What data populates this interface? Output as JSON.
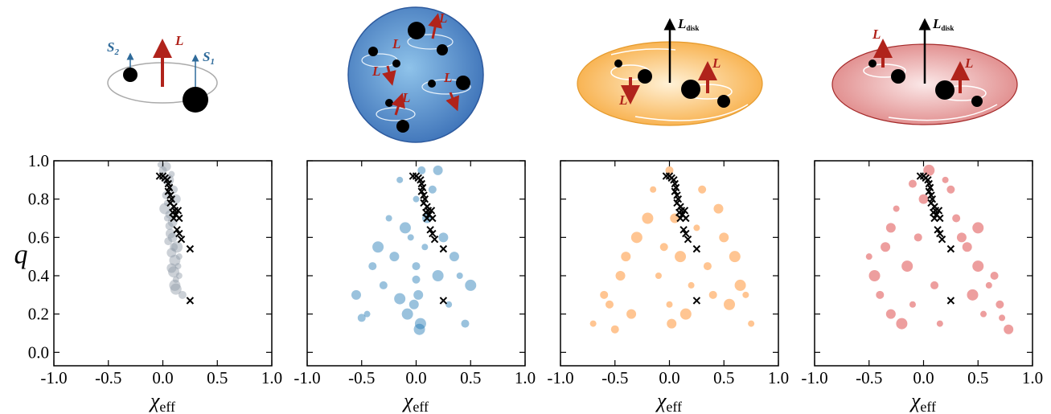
{
  "illustrations": [
    {
      "labels": [
        {
          "symbol": "S",
          "subscript": "2"
        },
        {
          "symbol": "L"
        },
        {
          "symbol": "S",
          "subscript": "1"
        }
      ]
    },
    {
      "labels": [
        {
          "symbol": "L"
        },
        {
          "symbol": "L"
        },
        {
          "symbol": "L"
        },
        {
          "symbol": "L"
        },
        {
          "symbol": "L"
        }
      ]
    },
    {
      "labels": [
        {
          "symbol": "L",
          "subscript": "disk"
        },
        {
          "symbol": "L"
        },
        {
          "symbol": "L"
        }
      ]
    },
    {
      "labels": [
        {
          "symbol": "L"
        },
        {
          "symbol": "L",
          "subscript": "disk"
        },
        {
          "symbol": "L"
        }
      ]
    }
  ],
  "chart_data": [
    {
      "type": "scatter",
      "ylabel": "q",
      "xlabel": {
        "symbol": "χ",
        "subscript": "eff"
      },
      "xlim": [
        -1,
        1
      ],
      "ylim": [
        -0.07,
        1.0
      ],
      "show_yticklabels": true,
      "xticks": [
        {
          "value": -1,
          "label": "-1.0"
        },
        {
          "value": -0.5,
          "label": "-0.5"
        },
        {
          "value": 0,
          "label": "0.0"
        },
        {
          "value": 0.5,
          "label": "0.5"
        },
        {
          "value": 1,
          "label": "1.0"
        }
      ],
      "yticks": [
        {
          "value": 0,
          "label": "0.0"
        },
        {
          "value": 0.2,
          "label": "0.2"
        },
        {
          "value": 0.4,
          "label": "0.4"
        },
        {
          "value": 0.6,
          "label": "0.6"
        },
        {
          "value": 0.8,
          "label": "0.8"
        },
        {
          "value": 1,
          "label": "1.0"
        }
      ],
      "series": [
        {
          "color": "#8e9aa6",
          "marker": "circle",
          "x": [
            -0.02,
            0,
            0.03,
            0.05,
            0.08,
            0.1,
            0.12,
            0.02,
            0.04,
            0.06,
            0.09,
            0.13,
            0.15,
            0.03,
            0.07,
            0.11,
            0.14,
            0.05,
            0.08,
            0.1,
            0.12,
            0.06,
            0.09,
            0.11,
            0.15,
            0.18,
            0.08,
            0.12,
            0.04,
            0.1
          ],
          "values": [
            0.98,
            0.95,
            0.97,
            0.9,
            0.93,
            0.85,
            0.8,
            0.75,
            0.7,
            0.66,
            0.6,
            0.55,
            0.5,
            0.82,
            0.62,
            0.48,
            0.45,
            0.58,
            0.52,
            0.42,
            0.38,
            0.72,
            0.68,
            0.35,
            0.4,
            0.3,
            0.44,
            0.33,
            0.78,
            0.55
          ]
        },
        {
          "color": "#000000",
          "marker": "x",
          "x": [
            0.0,
            0.02,
            0.04,
            0.05,
            0.06,
            0.05,
            0.07,
            0.08,
            0.07,
            0.1,
            0.11,
            0.12,
            0.1,
            0.14,
            0.15,
            0.13,
            0.15,
            0.17,
            0.25,
            0.25,
            -0.03,
            0.09
          ],
          "values": [
            0.92,
            0.91,
            0.9,
            0.88,
            0.86,
            0.84,
            0.82,
            0.8,
            0.78,
            0.76,
            0.74,
            0.72,
            0.7,
            0.74,
            0.7,
            0.64,
            0.62,
            0.59,
            0.54,
            0.27,
            0.92,
            0.73
          ]
        }
      ]
    },
    {
      "type": "scatter",
      "xlabel": {
        "symbol": "χ",
        "subscript": "eff"
      },
      "xlim": [
        -1,
        1
      ],
      "ylim": [
        -0.07,
        1.0
      ],
      "show_yticklabels": false,
      "xticks": [
        {
          "value": -1,
          "label": "-1.0"
        },
        {
          "value": -0.5,
          "label": "-0.5"
        },
        {
          "value": 0,
          "label": "0.0"
        },
        {
          "value": 0.5,
          "label": "0.5"
        },
        {
          "value": 1,
          "label": "1.0"
        }
      ],
      "yticks": [
        0,
        0.2,
        0.4,
        0.6,
        0.8,
        1
      ],
      "series": [
        {
          "color": "#1f77b4",
          "marker": "circle",
          "x": [
            -0.45,
            -0.3,
            -0.2,
            -0.1,
            0.0,
            0.05,
            0.1,
            0.2,
            0.3,
            0.45,
            -0.55,
            -0.35,
            -0.15,
            0.0,
            0.02,
            0.04,
            -0.05,
            0.15,
            0.35,
            0.5,
            -0.25,
            -0.4,
            0.25,
            -0.08,
            0.08,
            0.0,
            -0.02,
            0.03,
            0.4,
            -0.5,
            0.2,
            -0.15
          ],
          "values": [
            0.2,
            0.35,
            0.5,
            0.65,
            0.8,
            0.95,
            0.7,
            0.4,
            0.25,
            0.15,
            0.3,
            0.55,
            0.9,
            0.45,
            0.3,
            0.15,
            0.6,
            0.85,
            0.5,
            0.35,
            0.7,
            0.45,
            0.6,
            0.2,
            0.55,
            0.38,
            0.25,
            0.12,
            0.4,
            0.18,
            0.95,
            0.28
          ]
        },
        {
          "color": "#000000",
          "marker": "x",
          "x": [
            0.0,
            0.02,
            0.04,
            0.05,
            0.06,
            0.05,
            0.07,
            0.08,
            0.07,
            0.1,
            0.11,
            0.12,
            0.1,
            0.14,
            0.15,
            0.13,
            0.15,
            0.17,
            0.25,
            0.25,
            -0.03,
            0.09
          ],
          "values": [
            0.92,
            0.91,
            0.9,
            0.88,
            0.86,
            0.84,
            0.82,
            0.8,
            0.78,
            0.76,
            0.74,
            0.72,
            0.7,
            0.74,
            0.7,
            0.64,
            0.62,
            0.59,
            0.54,
            0.27,
            0.92,
            0.73
          ]
        }
      ]
    },
    {
      "type": "scatter",
      "xlabel": {
        "symbol": "χ",
        "subscript": "eff"
      },
      "xlim": [
        -1,
        1
      ],
      "ylim": [
        -0.07,
        1.0
      ],
      "show_yticklabels": false,
      "xticks": [
        {
          "value": -1,
          "label": "-1.0"
        },
        {
          "value": -0.5,
          "label": "-0.5"
        },
        {
          "value": 0,
          "label": "0.0"
        },
        {
          "value": 0.5,
          "label": "0.5"
        },
        {
          "value": 1,
          "label": "1.0"
        }
      ],
      "yticks": [
        0,
        0.2,
        0.4,
        0.6,
        0.8,
        1
      ],
      "series": [
        {
          "color": "#ff7f0e",
          "marker": "circle",
          "x": [
            -0.7,
            -0.55,
            -0.45,
            -0.3,
            -0.15,
            0.0,
            0.05,
            0.1,
            0.2,
            0.35,
            0.5,
            0.65,
            0.75,
            -0.6,
            -0.4,
            -0.2,
            0.0,
            0.3,
            0.45,
            0.6,
            -0.1,
            -0.05,
            0.02,
            0.15,
            0.25,
            0.4,
            -0.35,
            0.55,
            0.7,
            -0.5
          ],
          "values": [
            0.15,
            0.25,
            0.4,
            0.6,
            0.85,
            0.95,
            0.7,
            0.5,
            0.35,
            0.45,
            0.6,
            0.35,
            0.15,
            0.3,
            0.5,
            0.7,
            0.25,
            0.85,
            0.75,
            0.5,
            0.4,
            0.55,
            0.15,
            0.2,
            0.65,
            0.3,
            0.2,
            0.25,
            0.3,
            0.12
          ]
        },
        {
          "color": "#000000",
          "marker": "x",
          "x": [
            0.0,
            0.02,
            0.04,
            0.05,
            0.06,
            0.05,
            0.07,
            0.08,
            0.07,
            0.1,
            0.11,
            0.12,
            0.1,
            0.14,
            0.15,
            0.13,
            0.15,
            0.17,
            0.25,
            0.25,
            -0.03,
            0.09
          ],
          "values": [
            0.92,
            0.91,
            0.9,
            0.88,
            0.86,
            0.84,
            0.82,
            0.8,
            0.78,
            0.76,
            0.74,
            0.72,
            0.7,
            0.74,
            0.7,
            0.64,
            0.62,
            0.59,
            0.54,
            0.27,
            0.92,
            0.73
          ]
        }
      ]
    },
    {
      "type": "scatter",
      "xlabel": {
        "symbol": "χ",
        "subscript": "eff"
      },
      "xlim": [
        -1,
        1
      ],
      "ylim": [
        -0.07,
        1.0
      ],
      "show_yticklabels": false,
      "xticks": [
        {
          "value": -1,
          "label": "-1.0"
        },
        {
          "value": -0.5,
          "label": "-0.5"
        },
        {
          "value": 0,
          "label": "0.0"
        },
        {
          "value": 0.5,
          "label": "0.5"
        },
        {
          "value": 1,
          "label": "1.0"
        }
      ],
      "yticks": [
        0,
        0.2,
        0.4,
        0.6,
        0.8,
        1
      ],
      "series": [
        {
          "color": "#d62728",
          "marker": "circle",
          "x": [
            -0.5,
            -0.4,
            -0.3,
            -0.2,
            -0.1,
            -0.05,
            0.0,
            0.05,
            0.2,
            0.3,
            0.4,
            0.5,
            0.6,
            0.7,
            0.78,
            -0.45,
            -0.25,
            0.25,
            0.35,
            0.45,
            0.55,
            0.65,
            -0.35,
            -0.15,
            0.15,
            0.1,
            -0.3,
            0.5,
            0.72,
            -0.1
          ],
          "values": [
            0.5,
            0.3,
            0.2,
            0.15,
            0.25,
            0.6,
            0.8,
            0.95,
            0.9,
            0.7,
            0.55,
            0.45,
            0.35,
            0.25,
            0.12,
            0.4,
            0.75,
            0.85,
            0.6,
            0.3,
            0.2,
            0.4,
            0.55,
            0.45,
            0.15,
            0.35,
            0.65,
            0.65,
            0.18,
            0.88
          ]
        },
        {
          "color": "#000000",
          "marker": "x",
          "x": [
            0.0,
            0.02,
            0.04,
            0.05,
            0.06,
            0.05,
            0.07,
            0.08,
            0.07,
            0.1,
            0.11,
            0.12,
            0.1,
            0.14,
            0.15,
            0.13,
            0.15,
            0.17,
            0.25,
            0.25,
            -0.03,
            0.09
          ],
          "values": [
            0.92,
            0.91,
            0.9,
            0.88,
            0.86,
            0.84,
            0.82,
            0.8,
            0.78,
            0.76,
            0.74,
            0.72,
            0.7,
            0.74,
            0.7,
            0.64,
            0.62,
            0.59,
            0.54,
            0.27,
            0.92,
            0.73
          ]
        }
      ]
    }
  ]
}
